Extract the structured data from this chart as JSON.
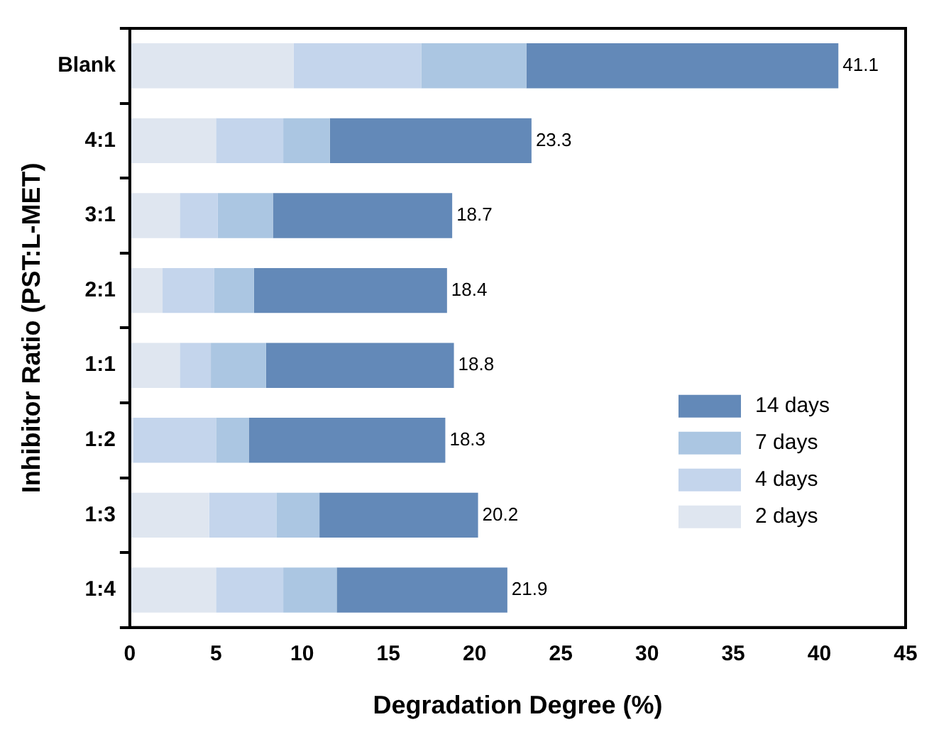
{
  "chart_data": {
    "type": "bar",
    "orientation": "horizontal",
    "stacked": true,
    "xlabel": "Degradation Degree (%)",
    "ylabel": "Inhibitor Ratio (PST:L-MET)",
    "categories": [
      "Blank",
      "4:1",
      "3:1",
      "2:1",
      "1:1",
      "1:2",
      "1:3",
      "1:4"
    ],
    "series": [
      {
        "name": "2 days",
        "color": "#dfe6f0",
        "values": [
          9.5,
          5.0,
          2.9,
          1.9,
          2.9,
          0.2,
          4.6,
          5.0
        ]
      },
      {
        "name": "4 days",
        "color": "#c4d5ec",
        "values": [
          7.4,
          3.9,
          2.2,
          3.0,
          1.8,
          4.8,
          3.9,
          3.9
        ]
      },
      {
        "name": "7 days",
        "color": "#abc6e2",
        "values": [
          6.1,
          2.7,
          3.2,
          2.3,
          3.2,
          1.9,
          2.5,
          3.1
        ]
      },
      {
        "name": "14 days",
        "color": "#6389b8",
        "values": [
          18.1,
          11.7,
          10.4,
          11.2,
          10.9,
          11.4,
          9.2,
          9.9
        ]
      }
    ],
    "totals": [
      "41.1",
      "23.3",
      "18.7",
      "18.4",
      "18.8",
      "18.3",
      "20.2",
      "21.9"
    ],
    "xlim": [
      0,
      45
    ],
    "xticks": [
      0,
      5,
      10,
      15,
      20,
      25,
      30,
      35,
      40,
      45
    ],
    "grid": false,
    "legend": "bottom right"
  }
}
